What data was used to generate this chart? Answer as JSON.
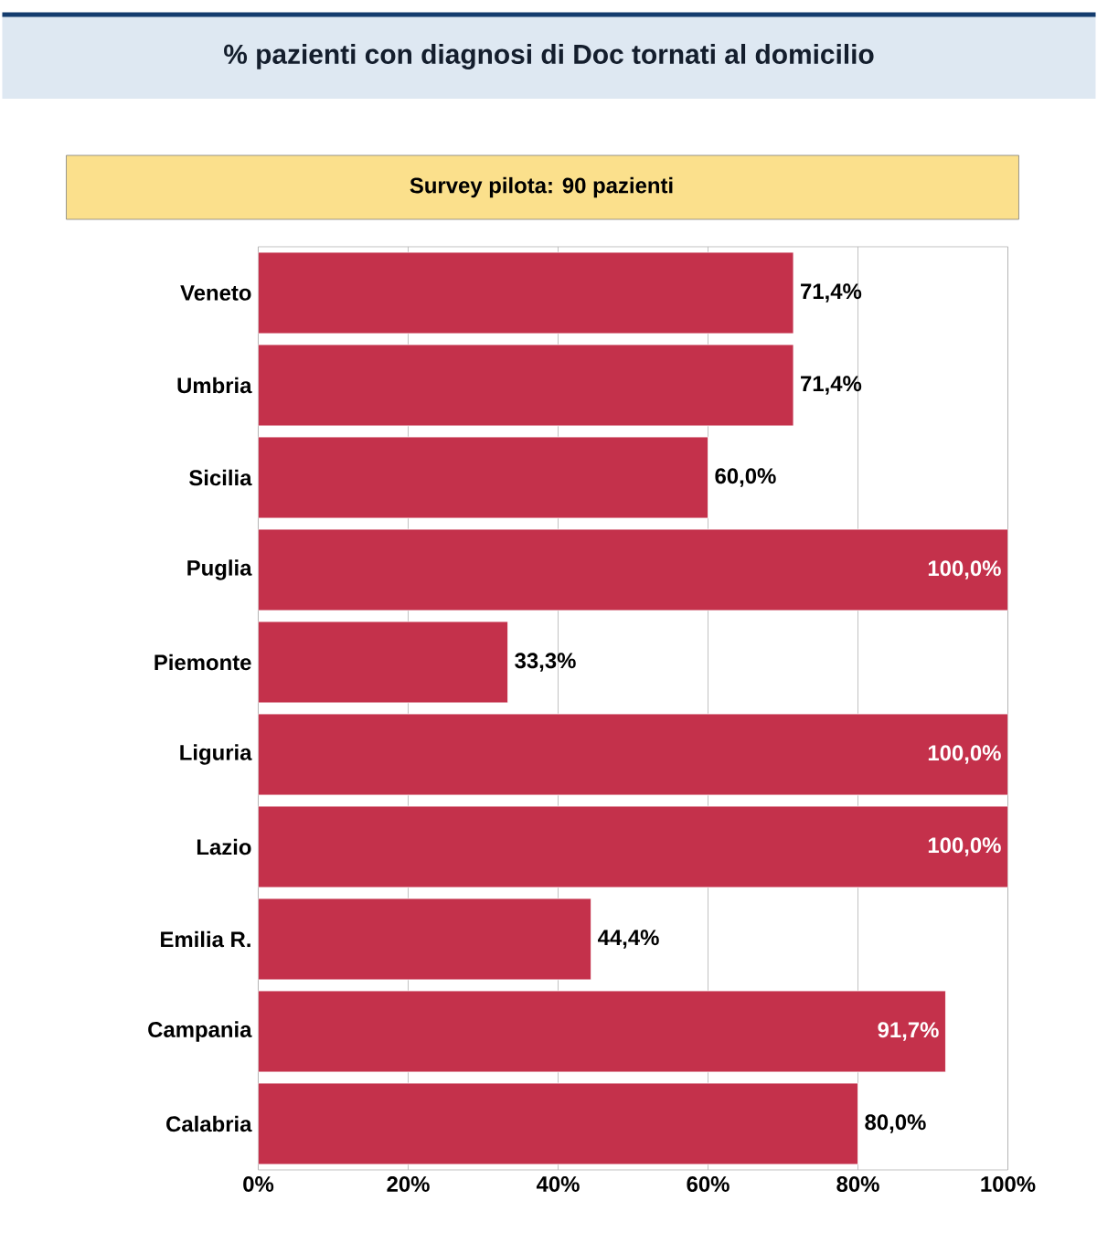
{
  "chart_data": {
    "type": "bar",
    "orientation": "horizontal",
    "title": "% pazienti con diagnosi di Doc tornati al domicilio",
    "subtitle": "Survey pilota: 90 pazienti",
    "categories": [
      "Veneto",
      "Umbria",
      "Sicilia",
      "Puglia",
      "Piemonte",
      "Liguria",
      "Lazio",
      "Emilia R.",
      "Campania",
      "Calabria"
    ],
    "values": [
      71.4,
      71.4,
      60.0,
      100.0,
      33.3,
      100.0,
      100.0,
      44.4,
      91.7,
      80.0
    ],
    "value_labels": [
      "71,4%",
      "71,4%",
      "60,0%",
      "100,0%",
      "33,3%",
      "100,0%",
      "100,0%",
      "44,4%",
      "91,7%",
      "80,0%"
    ],
    "color": "#c4314b",
    "xlim": [
      0,
      100
    ],
    "xticks": [
      {
        "value": 0,
        "label": "0%"
      },
      {
        "value": 20,
        "label": "20%"
      },
      {
        "value": 40,
        "label": "40%"
      },
      {
        "value": 60,
        "label": "60%"
      },
      {
        "value": 80,
        "label": "80%"
      },
      {
        "value": 100,
        "label": "100%"
      }
    ],
    "grid": "x"
  }
}
